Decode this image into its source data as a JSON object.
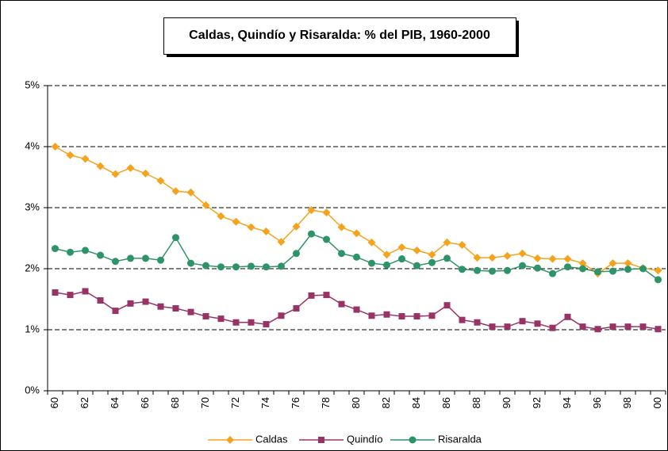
{
  "chart_data": {
    "type": "line",
    "title": "Caldas, Quindío y Risaralda: % del PIB, 1960-2000",
    "categories": [
      "60",
      null,
      "62",
      null,
      "64",
      null,
      "66",
      null,
      "68",
      null,
      "70",
      null,
      "72",
      null,
      "74",
      null,
      "76",
      null,
      "78",
      null,
      "80",
      null,
      "82",
      null,
      "84",
      null,
      "86",
      null,
      "88",
      null,
      "90",
      null,
      "92",
      null,
      "94",
      null,
      "96",
      null,
      "98",
      null,
      "00"
    ],
    "series": [
      {
        "name": "Caldas",
        "color": "#f5a31c",
        "marker": "diamond",
        "values": [
          4.0,
          3.86,
          3.8,
          3.68,
          3.55,
          3.65,
          3.56,
          3.44,
          3.27,
          3.25,
          3.04,
          2.86,
          2.77,
          2.68,
          2.61,
          2.44,
          2.69,
          2.96,
          2.92,
          2.68,
          2.58,
          2.43,
          2.23,
          2.35,
          2.3,
          2.23,
          2.43,
          2.39,
          2.18,
          2.18,
          2.21,
          2.25,
          2.17,
          2.16,
          2.16,
          2.09,
          1.92,
          2.09,
          2.09,
          2.01,
          1.97
        ]
      },
      {
        "name": "Quindío",
        "color": "#993366",
        "marker": "square",
        "values": [
          1.61,
          1.57,
          1.63,
          1.48,
          1.31,
          1.43,
          1.46,
          1.38,
          1.35,
          1.29,
          1.22,
          1.18,
          1.12,
          1.12,
          1.09,
          1.23,
          1.35,
          1.56,
          1.57,
          1.42,
          1.33,
          1.23,
          1.25,
          1.22,
          1.22,
          1.23,
          1.4,
          1.16,
          1.12,
          1.05,
          1.05,
          1.14,
          1.1,
          1.03,
          1.21,
          1.05,
          1.01,
          1.05,
          1.05,
          1.05,
          1.01
        ]
      },
      {
        "name": "Risaralda",
        "color": "#2e9468",
        "marker": "circle",
        "values": [
          2.33,
          2.27,
          2.3,
          2.22,
          2.12,
          2.17,
          2.17,
          2.14,
          2.51,
          2.09,
          2.05,
          2.03,
          2.03,
          2.04,
          2.03,
          2.04,
          2.25,
          2.57,
          2.48,
          2.25,
          2.19,
          2.09,
          2.06,
          2.16,
          2.05,
          2.1,
          2.17,
          1.99,
          1.97,
          1.96,
          1.97,
          2.05,
          2.01,
          1.92,
          2.03,
          2.0,
          1.95,
          1.96,
          1.99,
          2.0,
          1.82
        ]
      }
    ],
    "ylim": [
      0,
      5
    ],
    "yticks": [
      {
        "value": 0,
        "label": "0%"
      },
      {
        "value": 1,
        "label": "1%"
      },
      {
        "value": 2,
        "label": "2%"
      },
      {
        "value": 3,
        "label": "3%"
      },
      {
        "value": 4,
        "label": "4%"
      },
      {
        "value": 5,
        "label": "5%"
      }
    ],
    "grid": true,
    "legend": "bottom"
  }
}
